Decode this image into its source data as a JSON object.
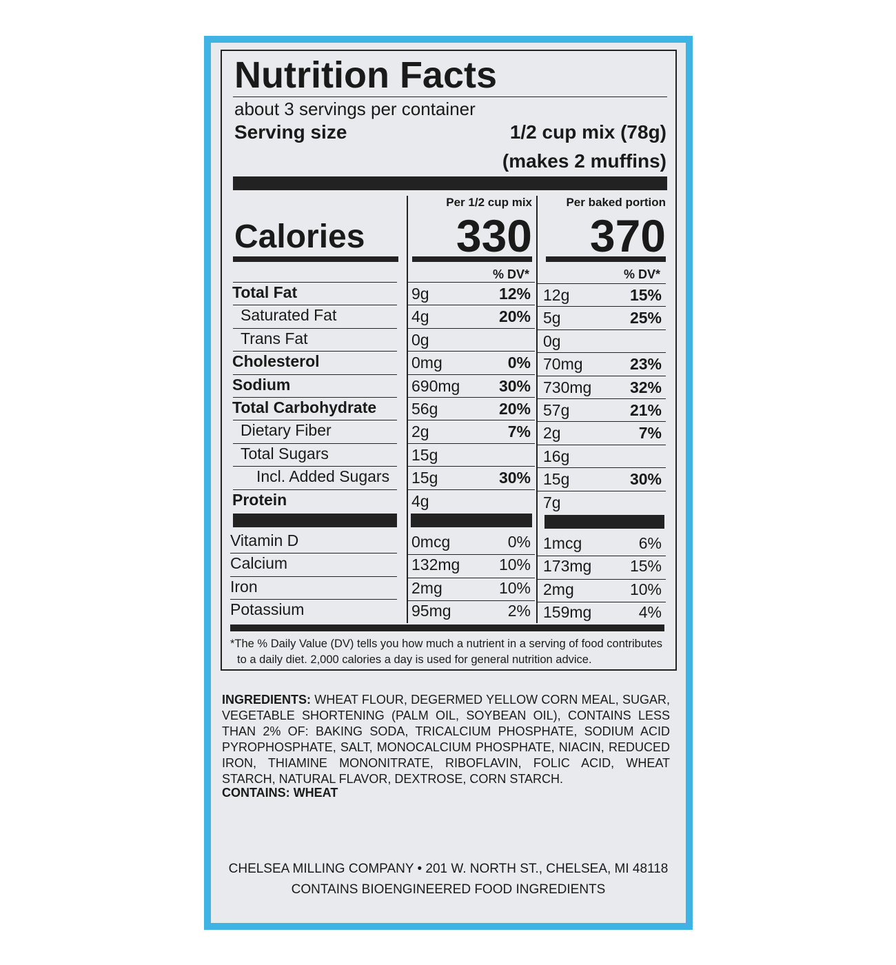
{
  "label": {
    "title": "Nutrition Facts",
    "servings": "about 3 servings per container",
    "serving_size_label": "Serving size",
    "serving_size": "1/2 cup mix (78g)",
    "serving_size_note": "(makes 2 muffins)",
    "columns": [
      "Per 1/2 cup mix",
      "Per baked portion"
    ],
    "calories_label": "Calories",
    "calories": [
      "330",
      "370"
    ],
    "dv_header": "% DV*",
    "nutrients": [
      {
        "name": "Total Fat",
        "mix": {
          "amount": "9g",
          "dv": "12%"
        },
        "baked": {
          "amount": "12g",
          "dv": "15%"
        }
      },
      {
        "name": "Saturated Fat",
        "mix": {
          "amount": "4g",
          "dv": "20%"
        },
        "baked": {
          "amount": "5g",
          "dv": "25%"
        }
      },
      {
        "name": "Trans Fat",
        "mix": {
          "amount": "0g"
        },
        "baked": {
          "amount": "0g"
        }
      },
      {
        "name": "Cholesterol",
        "mix": {
          "amount": "0mg",
          "dv": "0%"
        },
        "baked": {
          "amount": "70mg",
          "dv": "23%"
        }
      },
      {
        "name": "Sodium",
        "mix": {
          "amount": "690mg",
          "dv": "30%"
        },
        "baked": {
          "amount": "730mg",
          "dv": "32%"
        }
      },
      {
        "name": "Total Carbohydrate",
        "mix": {
          "amount": "56g",
          "dv": "20%"
        },
        "baked": {
          "amount": "57g",
          "dv": "21%"
        }
      },
      {
        "name": "Dietary Fiber",
        "mix": {
          "amount": "2g",
          "dv": "7%"
        },
        "baked": {
          "amount": "2g",
          "dv": "7%"
        }
      },
      {
        "name": "Total Sugars",
        "mix": {
          "amount": "15g"
        },
        "baked": {
          "amount": "16g"
        }
      },
      {
        "name": "Incl. Added Sugars",
        "mix": {
          "amount": "15g",
          "dv": "30%"
        },
        "baked": {
          "amount": "15g",
          "dv": "30%"
        }
      },
      {
        "name": "Protein",
        "mix": {
          "amount": "4g"
        },
        "baked": {
          "amount": "7g"
        }
      }
    ],
    "vitamins": [
      {
        "name": "Vitamin D",
        "mix": {
          "amount": "0mcg",
          "dv": "0%"
        },
        "baked": {
          "amount": "1mcg",
          "dv": "6%"
        }
      },
      {
        "name": "Calcium",
        "mix": {
          "amount": "132mg",
          "dv": "10%"
        },
        "baked": {
          "amount": "173mg",
          "dv": "15%"
        }
      },
      {
        "name": "Iron",
        "mix": {
          "amount": "2mg",
          "dv": "10%"
        },
        "baked": {
          "amount": "2mg",
          "dv": "10%"
        }
      },
      {
        "name": "Potassium",
        "mix": {
          "amount": "95mg",
          "dv": "2%"
        },
        "baked": {
          "amount": "159mg",
          "dv": "4%"
        }
      }
    ],
    "footnote": [
      "*The % Daily Value (DV) tells you how much a nutrient in a serving of food contributes",
      "to a daily diet. 2,000 calories a day is used for general nutrition advice."
    ]
  },
  "ingredients": {
    "heading": "INGREDIENTS:",
    "text": "WHEAT FLOUR, DEGERMED YELLOW CORN MEAL, SUGAR, VEGETABLE SHORTENING (PALM OIL, SOYBEAN OIL), CONTAINS LESS THAN 2% OF: BAKING SODA, TRICALCIUM PHOSPHATE, SODIUM ACID PYROPHOSPHATE, SALT, MONOCALCIUM PHOSPHATE, NIACIN, REDUCED IRON, THIAMINE MONONITRATE, RIBOFLAVIN, FOLIC ACID, WHEAT STARCH, NATURAL FLAVOR, DEXTROSE, CORN STARCH.",
    "contains_heading": "CONTAINS:",
    "contains": "WHEAT"
  },
  "footer": [
    "CHELSEA MILLING COMPANY • 201 W. NORTH ST., CHELSEA, MI 48118",
    "CONTAINS BIOENGINEERED FOOD INGREDIENTS"
  ]
}
